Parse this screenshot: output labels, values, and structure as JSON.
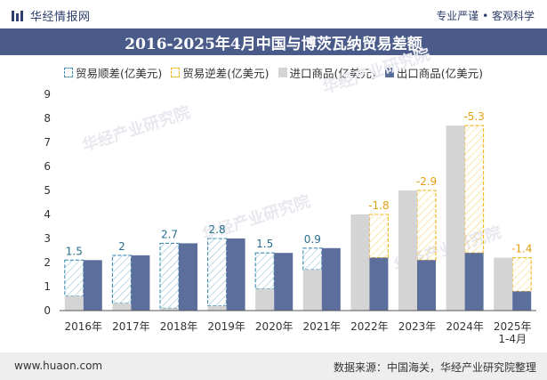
{
  "header": {
    "brand_name": "华经情报网",
    "tagline": "专业严谨 • 客观科学"
  },
  "title": "2016-2025年4月中国与博茨瓦纳贸易差额",
  "legend": {
    "surplus": "贸易顺差(亿美元)",
    "deficit": "贸易逆差(亿美元)",
    "import": "进口商品(亿美元)",
    "export": "出口商品(亿美元)"
  },
  "watermark": "华经产业研究院",
  "footer": {
    "url": "www.huaon.com",
    "source": "数据来源：中国海关，华经产业研究院整理"
  },
  "colors": {
    "export": "#5c6e9b",
    "import": "#d4d4d4",
    "surplus": "#3e8fb3",
    "deficit": "#f3b51b"
  },
  "chart_data": {
    "type": "bar",
    "categories": [
      "2016年",
      "2017年",
      "2018年",
      "2019年",
      "2020年",
      "2021年",
      "2022年",
      "2023年",
      "2024年",
      "2025年\n1-4月"
    ],
    "series": [
      {
        "name": "进口商品(亿美元)",
        "values": [
          0.6,
          0.3,
          0.1,
          0.2,
          0.9,
          1.7,
          4.0,
          5.0,
          7.7,
          2.2
        ]
      },
      {
        "name": "出口商品(亿美元)",
        "values": [
          2.1,
          2.3,
          2.8,
          3.0,
          2.4,
          2.6,
          2.2,
          2.1,
          2.4,
          0.8
        ]
      }
    ],
    "balance_labels": [
      "1.5",
      "2",
      "2.7",
      "2.8",
      "1.5",
      "0.9",
      "-1.8",
      "-2.9",
      "-5.3",
      "-1.4"
    ],
    "ylim": [
      0,
      9
    ],
    "yticks": [
      0,
      1,
      2,
      3,
      4,
      5,
      6,
      7,
      8,
      9
    ],
    "grid": false,
    "legend_position": "top"
  }
}
